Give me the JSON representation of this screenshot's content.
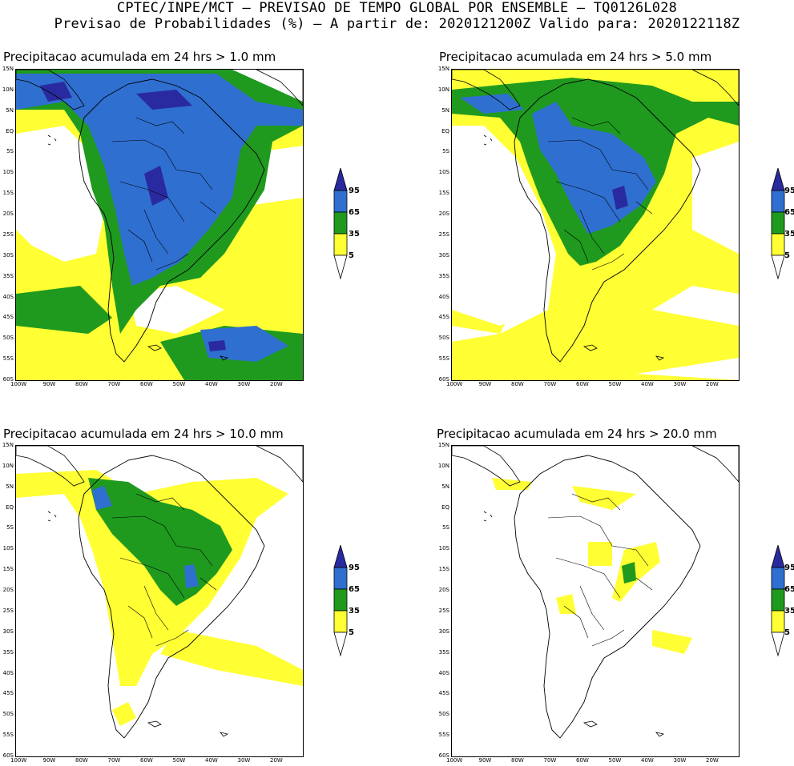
{
  "header": {
    "line1": "CPTEC/INPE/MCT – PREVISAO DE TEMPO GLOBAL POR ENSEMBLE – TQ0126L028",
    "line2": "Previsao de Probabilidades (%) –  A partir de: 2020121200Z  Valido para: 2020122118Z"
  },
  "axes": {
    "lat_labels": [
      "15N",
      "10N",
      "5N",
      "EQ",
      "5S",
      "10S",
      "15S",
      "20S",
      "25S",
      "30S",
      "35S",
      "40S",
      "45S",
      "50S",
      "55S",
      "60S"
    ],
    "lon_labels": [
      "100W",
      "90W",
      "80W",
      "70W",
      "60W",
      "50W",
      "40W",
      "30W",
      "20W"
    ]
  },
  "legend": {
    "labels": [
      "95",
      "65",
      "35",
      "5"
    ],
    "colors": {
      "c95": "#2a2aa0",
      "c65": "#2f6fd0",
      "c35": "#1f9a1f",
      "c5": "#ffff33"
    }
  },
  "panels": [
    {
      "title": "Precipitacao acumulada em 24 hrs > 1.0 mm"
    },
    {
      "title": "Precipitacao acumulada em 24 hrs > 5.0 mm"
    },
    {
      "title": "Precipitacao acumulada em 24 hrs > 10.0 mm"
    },
    {
      "title": "Precipitacao acumulada em 24 hrs > 20.0 mm"
    }
  ]
}
